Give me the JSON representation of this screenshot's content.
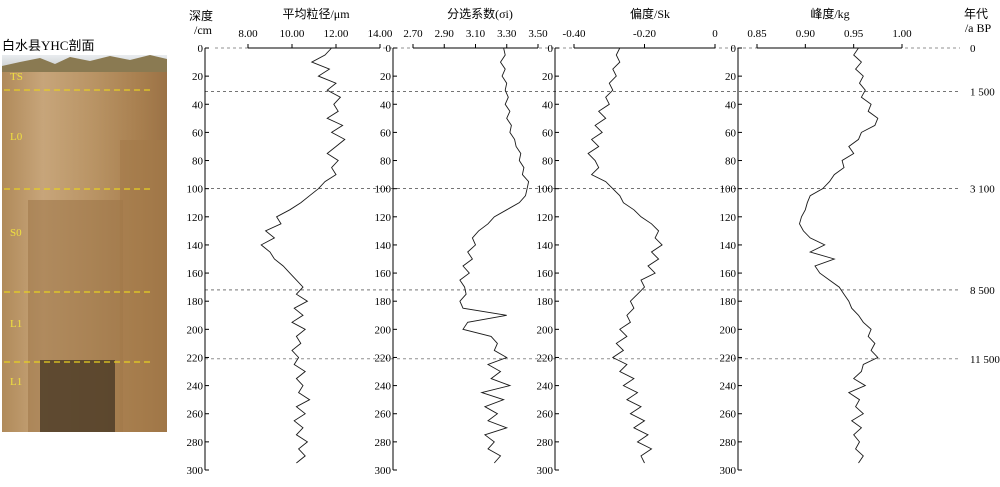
{
  "photo": {
    "caption": "白水县YHC剖面",
    "layers": [
      "TS",
      "L0",
      "S0",
      "L1",
      "L1"
    ]
  },
  "depth_header": [
    "深度",
    "/cm"
  ],
  "age_header": [
    "年代",
    "/a BP"
  ],
  "depth_ticks": [
    "0",
    "20",
    "40",
    "60",
    "80",
    "100",
    "120",
    "140",
    "160",
    "180",
    "200",
    "220",
    "240",
    "260",
    "280",
    "300"
  ],
  "age_marks": [
    {
      "depth": 0,
      "label": "0"
    },
    {
      "depth": 31,
      "label": "1 500"
    },
    {
      "depth": 100,
      "label": "3 100"
    },
    {
      "depth": 172,
      "label": "8 500"
    },
    {
      "depth": 221,
      "label": "11 500"
    }
  ],
  "boundaries": [
    0,
    31,
    100,
    172,
    221
  ],
  "chart_data": [
    {
      "type": "line",
      "title": "平均粒径/μm",
      "xticks": [
        "8.00",
        "10.00",
        "12.00",
        "14.00"
      ],
      "xlim": [
        8,
        14
      ],
      "ylim": [
        0,
        300
      ],
      "y": [
        0,
        5,
        10,
        15,
        20,
        25,
        30,
        35,
        40,
        45,
        50,
        55,
        60,
        65,
        70,
        75,
        80,
        85,
        90,
        95,
        100,
        105,
        110,
        115,
        120,
        125,
        130,
        135,
        140,
        145,
        150,
        155,
        160,
        165,
        170,
        175,
        180,
        185,
        190,
        195,
        200,
        205,
        210,
        215,
        220,
        225,
        230,
        235,
        240,
        245,
        250,
        255,
        260,
        265,
        270,
        275,
        280,
        285,
        290,
        295
      ],
      "x": [
        11.8,
        11.5,
        10.9,
        11.7,
        11.2,
        12.0,
        11.6,
        12.2,
        11.9,
        12.1,
        11.6,
        12.3,
        11.8,
        12.4,
        12.0,
        11.6,
        12.1,
        11.8,
        12.0,
        11.5,
        11.2,
        10.8,
        10.4,
        9.9,
        9.3,
        9.5,
        8.8,
        9.2,
        8.6,
        9.0,
        9.2,
        9.6,
        9.9,
        10.2,
        10.5,
        10.2,
        10.7,
        10.1,
        10.5,
        10.0,
        10.6,
        10.2,
        10.4,
        10.0,
        10.3,
        10.1,
        10.6,
        10.2,
        10.5,
        10.3,
        10.8,
        10.2,
        10.6,
        10.1,
        10.5,
        10.2,
        10.7,
        10.3,
        10.6,
        10.2
      ]
    },
    {
      "type": "line",
      "title": "分选系数(σi)",
      "xticks": [
        "2.70",
        "2.90",
        "3.10",
        "3.30",
        "3.50"
      ],
      "xlim": [
        2.7,
        3.5
      ],
      "ylim": [
        0,
        300
      ],
      "y": [
        0,
        5,
        10,
        15,
        20,
        25,
        30,
        35,
        40,
        45,
        50,
        55,
        60,
        65,
        70,
        75,
        80,
        85,
        90,
        95,
        100,
        105,
        110,
        115,
        120,
        125,
        130,
        135,
        140,
        145,
        150,
        155,
        160,
        165,
        170,
        175,
        180,
        185,
        190,
        195,
        200,
        205,
        210,
        215,
        220,
        225,
        230,
        235,
        240,
        245,
        250,
        255,
        260,
        265,
        270,
        275,
        280,
        285,
        290,
        295
      ],
      "x": [
        3.28,
        3.29,
        3.26,
        3.29,
        3.27,
        3.3,
        3.29,
        3.31,
        3.29,
        3.32,
        3.3,
        3.33,
        3.32,
        3.35,
        3.36,
        3.39,
        3.38,
        3.41,
        3.4,
        3.44,
        3.43,
        3.42,
        3.38,
        3.3,
        3.22,
        3.18,
        3.12,
        3.08,
        3.1,
        3.05,
        3.08,
        3.02,
        3.06,
        3.0,
        3.03,
        3.04,
        3.0,
        3.02,
        3.3,
        3.05,
        3.02,
        3.2,
        3.24,
        3.22,
        3.3,
        3.18,
        3.26,
        3.2,
        3.32,
        3.14,
        3.28,
        3.16,
        3.24,
        3.18,
        3.3,
        3.16,
        3.22,
        3.18,
        3.26,
        3.22
      ]
    },
    {
      "type": "line",
      "title": "偏度/Sk",
      "xticks": [
        "-0.40",
        "-0.20",
        "0"
      ],
      "xlim": [
        -0.4,
        0
      ],
      "ylim": [
        0,
        300
      ],
      "y": [
        0,
        5,
        10,
        15,
        20,
        25,
        30,
        35,
        40,
        45,
        50,
        55,
        60,
        65,
        70,
        75,
        80,
        85,
        90,
        95,
        100,
        105,
        110,
        115,
        120,
        125,
        130,
        135,
        140,
        145,
        150,
        155,
        160,
        165,
        170,
        175,
        180,
        185,
        190,
        195,
        200,
        205,
        210,
        215,
        220,
        225,
        230,
        235,
        240,
        245,
        250,
        255,
        260,
        265,
        270,
        275,
        280,
        285,
        290,
        295
      ],
      "x": [
        -0.27,
        -0.28,
        -0.27,
        -0.29,
        -0.28,
        -0.3,
        -0.29,
        -0.31,
        -0.3,
        -0.33,
        -0.31,
        -0.34,
        -0.32,
        -0.35,
        -0.33,
        -0.36,
        -0.34,
        -0.33,
        -0.35,
        -0.31,
        -0.29,
        -0.27,
        -0.26,
        -0.23,
        -0.21,
        -0.18,
        -0.16,
        -0.17,
        -0.15,
        -0.18,
        -0.16,
        -0.19,
        -0.17,
        -0.21,
        -0.2,
        -0.22,
        -0.24,
        -0.23,
        -0.25,
        -0.24,
        -0.27,
        -0.25,
        -0.28,
        -0.26,
        -0.29,
        -0.25,
        -0.27,
        -0.23,
        -0.26,
        -0.22,
        -0.25,
        -0.21,
        -0.24,
        -0.2,
        -0.23,
        -0.19,
        -0.22,
        -0.18,
        -0.21,
        -0.2
      ]
    },
    {
      "type": "line",
      "title": "峰度/kg",
      "xticks": [
        "0.85",
        "0.90",
        "0.95",
        "1.00"
      ],
      "xlim": [
        0.85,
        1.0
      ],
      "ylim": [
        0,
        300
      ],
      "y": [
        0,
        5,
        10,
        15,
        20,
        25,
        30,
        35,
        40,
        45,
        50,
        55,
        60,
        65,
        70,
        75,
        80,
        85,
        90,
        95,
        100,
        105,
        110,
        115,
        120,
        125,
        130,
        135,
        140,
        145,
        150,
        155,
        160,
        165,
        170,
        175,
        180,
        185,
        190,
        195,
        200,
        205,
        210,
        215,
        220,
        225,
        230,
        235,
        240,
        245,
        250,
        255,
        260,
        265,
        270,
        275,
        280,
        285,
        290,
        295
      ],
      "x": [
        0.955,
        0.95,
        0.958,
        0.952,
        0.96,
        0.956,
        0.962,
        0.958,
        0.968,
        0.965,
        0.975,
        0.972,
        0.958,
        0.955,
        0.945,
        0.95,
        0.938,
        0.94,
        0.93,
        0.925,
        0.918,
        0.905,
        0.902,
        0.9,
        0.896,
        0.894,
        0.898,
        0.905,
        0.92,
        0.905,
        0.93,
        0.91,
        0.915,
        0.925,
        0.935,
        0.94,
        0.945,
        0.948,
        0.955,
        0.96,
        0.968,
        0.965,
        0.972,
        0.968,
        0.975,
        0.96,
        0.958,
        0.95,
        0.962,
        0.945,
        0.956,
        0.952,
        0.96,
        0.948,
        0.958,
        0.95,
        0.956,
        0.952,
        0.96,
        0.955
      ]
    }
  ]
}
